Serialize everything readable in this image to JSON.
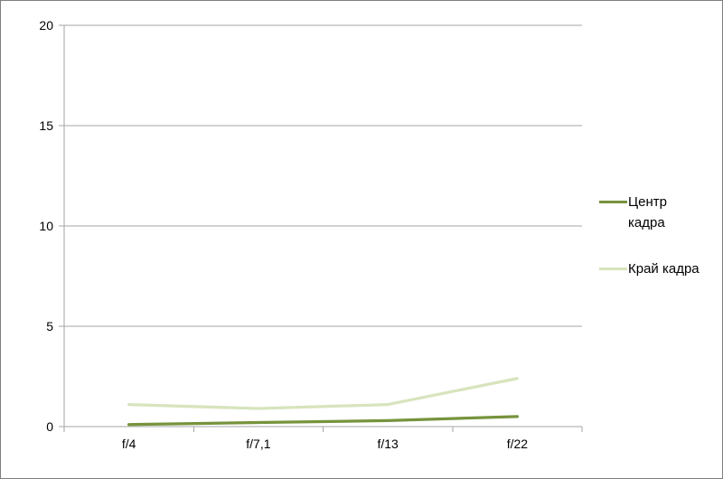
{
  "chart_data": {
    "type": "line",
    "categories": [
      "f/4",
      "f/7,1",
      "f/13",
      "f/22"
    ],
    "series": [
      {
        "name": "Центр кадра",
        "values": [
          0.1,
          0.2,
          0.3,
          0.5
        ],
        "color": "#77933C"
      },
      {
        "name": "Край кадра",
        "values": [
          1.1,
          0.9,
          1.1,
          2.4
        ],
        "color": "#D7E4BD"
      }
    ],
    "title": "",
    "xlabel": "",
    "ylabel": "",
    "ylim": [
      0,
      20
    ],
    "ytick_step": 5,
    "ytick_labels": [
      "0",
      "5",
      "10",
      "15",
      "20"
    ],
    "grid": true,
    "legend_position": "right"
  },
  "legend": {
    "entries": [
      {
        "lines": [
          "Центр",
          "кадра"
        ]
      },
      {
        "lines": [
          "Край кадра"
        ]
      }
    ]
  },
  "colors": {
    "axis": "#A6A6A6",
    "gridline": "#A6A6A6",
    "text": "#000000",
    "background": "#FFFFFF",
    "border": "#7F7F7F"
  }
}
